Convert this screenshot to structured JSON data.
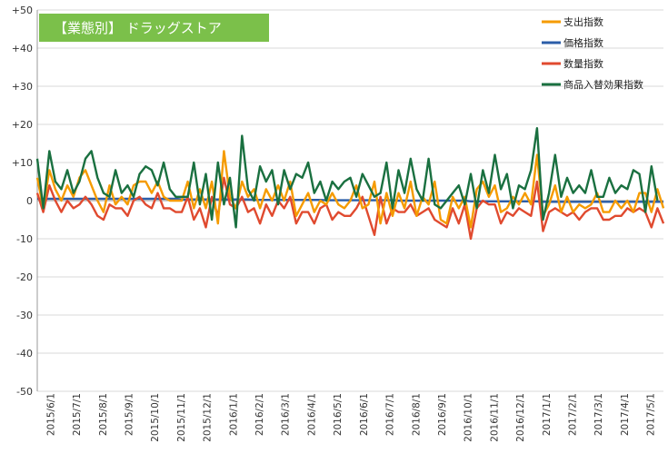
{
  "chart_data": {
    "type": "line",
    "title": "【業態別】 ドラッグストア",
    "xlabel": "",
    "ylabel": "",
    "ylim": [
      -50,
      50
    ],
    "y_ticks": [
      "+50",
      "+40",
      "+30",
      "+20",
      "+10",
      "0",
      "-10",
      "-20",
      "-30",
      "-40",
      "-50"
    ],
    "x_labels": [
      "2015/6/1",
      "2015/7/1",
      "2015/8/1",
      "2015/9/1",
      "2015/10/1",
      "2015/11/1",
      "2015/12/1",
      "2016/1/1",
      "2016/2/1",
      "2016/3/1",
      "2016/4/1",
      "2016/5/1",
      "2016/6/1",
      "2016/7/1",
      "2016/8/1",
      "2016/9/1",
      "2016/10/1",
      "2016/11/1",
      "2016/12/1",
      "2017/1/1",
      "2017/2/1",
      "2017/3/1",
      "2017/4/1",
      "2017/5/1"
    ],
    "grid": true,
    "legend_position": "top-right",
    "series": [
      {
        "name": "支出指数",
        "color": "#f59b00",
        "values": [
          6,
          -2,
          8,
          3,
          0,
          4,
          1,
          6,
          8,
          4,
          0,
          -3,
          4,
          -1,
          1,
          -1,
          4,
          5,
          5,
          2,
          5,
          1,
          0,
          0,
          0,
          5,
          -2,
          3,
          -2,
          5,
          -6,
          13,
          1,
          -2,
          5,
          1,
          3,
          -2,
          3,
          0,
          4,
          0,
          5,
          -4,
          -1,
          2,
          -3,
          0,
          -1,
          2,
          -1,
          -2,
          0,
          4,
          -2,
          -1,
          5,
          -6,
          2,
          -4,
          2,
          -2,
          5,
          -4,
          1,
          -1,
          5,
          -5,
          -6,
          1,
          -2,
          1,
          -7,
          3,
          5,
          1,
          4,
          -3,
          -2,
          1,
          -1,
          2,
          -1,
          12,
          -4,
          -1,
          4,
          -3,
          1,
          -3,
          -1,
          -2,
          -1,
          2,
          -3,
          -3,
          0,
          -2,
          0,
          -3,
          2,
          2,
          -3,
          3,
          -2
        ]
      },
      {
        "name": "価格指数",
        "color": "#2b5da8",
        "values": [
          0.5,
          0.5,
          0.5,
          0.5,
          0.5,
          0.5,
          0.5,
          0.5,
          0.5,
          0.5,
          0.5,
          0.5,
          0.5,
          0.5,
          0.5,
          0.5,
          0.5,
          0.5,
          0.5,
          0.5,
          0.5,
          0.5,
          0.5,
          0.5,
          0.3,
          0.3,
          0.3,
          0.3,
          0.3,
          0.3,
          0.3,
          0.3,
          0.3,
          0.3,
          0.3,
          0.3,
          0.2,
          0.2,
          0.2,
          0.2,
          0.2,
          0.2,
          0.2,
          0.2,
          0.2,
          0.2,
          0.2,
          0.2,
          0.1,
          0.1,
          0.1,
          0.1,
          0.1,
          0.1,
          0.1,
          0.1,
          0.1,
          0.1,
          0.1,
          0.1,
          0,
          0,
          0,
          0,
          0,
          0,
          0,
          0,
          0,
          0,
          0,
          0,
          -0.2,
          -0.2,
          -0.2,
          -0.2,
          -0.2,
          -0.2,
          -0.2,
          -0.2,
          -0.2,
          -0.2,
          -0.2,
          -0.2,
          -0.3,
          -0.3,
          -0.3,
          -0.3,
          -0.3,
          -0.3,
          -0.3,
          -0.3,
          -0.3,
          -0.3,
          -0.3,
          -0.3,
          -0.3,
          -0.3,
          -0.3,
          -0.3,
          -0.3,
          -0.3,
          -0.3,
          -0.3,
          -0.3
        ]
      },
      {
        "name": "数量指数",
        "color": "#e04a2f",
        "values": [
          2,
          -3,
          4,
          0,
          -3,
          0,
          -2,
          -1,
          1,
          -1,
          -4,
          -5,
          -1,
          -2,
          -2,
          -4,
          0,
          1,
          -1,
          -2,
          2,
          -2,
          -2,
          -3,
          -3,
          1,
          -5,
          -2,
          -7,
          1,
          -4,
          6,
          -1,
          -2,
          1,
          -3,
          -2,
          -6,
          -1,
          -4,
          0,
          -2,
          1,
          -6,
          -3,
          -3,
          -6,
          -2,
          -1,
          -5,
          -3,
          -4,
          -4,
          -2,
          1,
          -4,
          -9,
          1,
          -6,
          -2,
          -3,
          -3,
          -1,
          -4,
          -3,
          -2,
          -5,
          -6,
          -7,
          -2,
          -6,
          -1,
          -10,
          -2,
          0,
          -1,
          -1,
          -6,
          -3,
          -4,
          -2,
          -3,
          -4,
          5,
          -8,
          -3,
          -2,
          -3,
          -4,
          -3,
          -5,
          -3,
          -2,
          -2,
          -5,
          -5,
          -4,
          -4,
          -2,
          -3,
          -2,
          -3,
          -7,
          -2,
          -6
        ]
      },
      {
        "name": "商品入替効果指数",
        "color": "#1a7040",
        "values": [
          11,
          -2,
          13,
          5,
          3,
          8,
          2,
          5,
          11,
          13,
          6,
          2,
          1,
          8,
          2,
          4,
          1,
          7,
          9,
          8,
          4,
          10,
          3,
          1,
          1,
          1,
          10,
          -1,
          7,
          -5,
          10,
          -1,
          6,
          -7,
          17,
          3,
          0,
          9,
          5,
          8,
          -1,
          8,
          3,
          7,
          6,
          10,
          2,
          5,
          0,
          5,
          3,
          5,
          6,
          1,
          7,
          4,
          1,
          2,
          10,
          -2,
          8,
          2,
          11,
          3,
          0,
          11,
          -1,
          -2,
          0,
          2,
          4,
          -1,
          7,
          -2,
          8,
          2,
          12,
          3,
          7,
          -2,
          4,
          3,
          8,
          19,
          -5,
          2,
          12,
          1,
          6,
          2,
          4,
          2,
          8,
          1,
          1,
          6,
          2,
          4,
          3,
          8,
          7,
          -3,
          9,
          0
        ]
      }
    ]
  }
}
